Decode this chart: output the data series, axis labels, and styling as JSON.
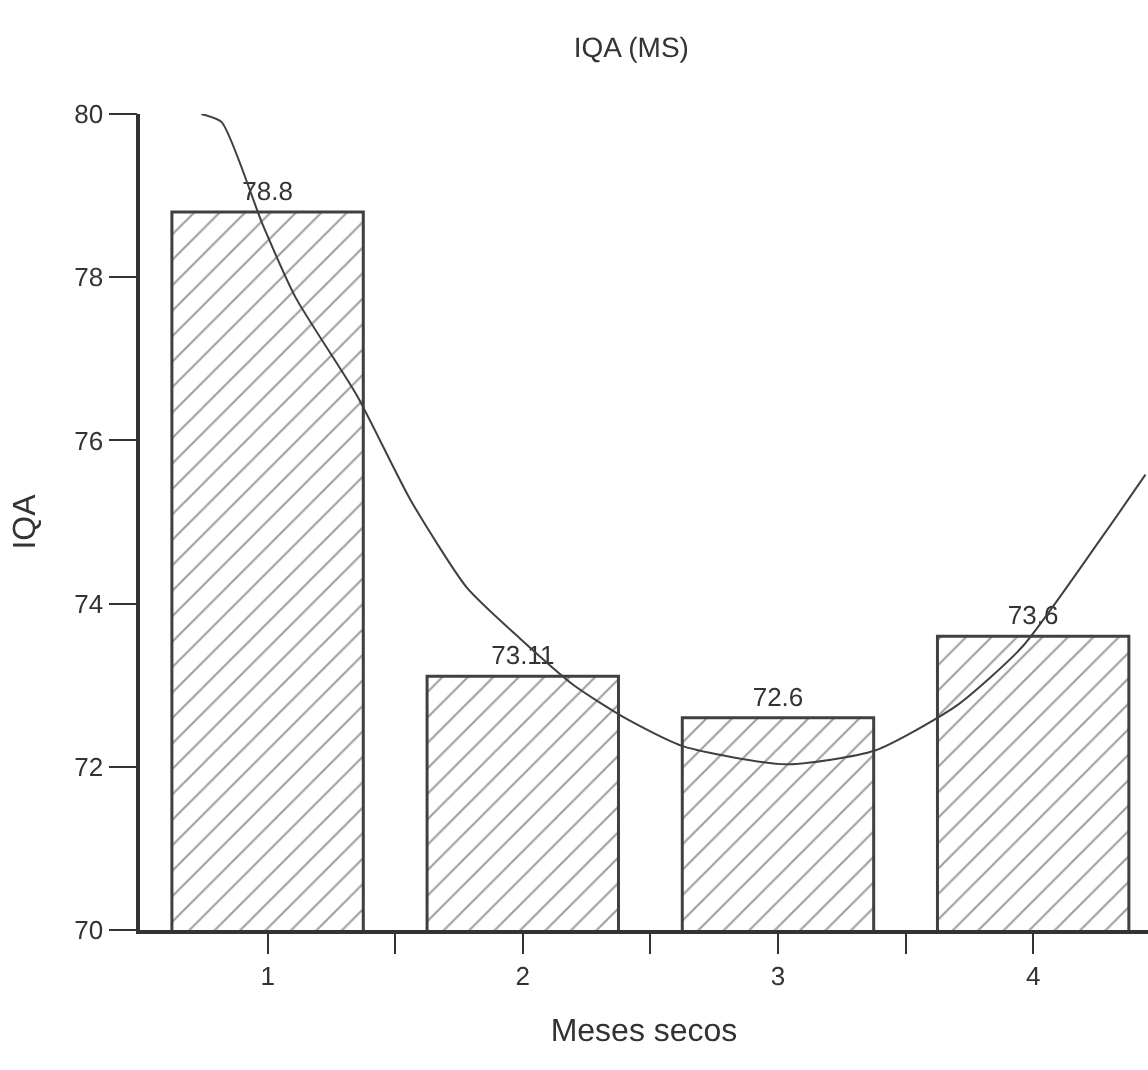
{
  "chart_data": {
    "type": "bar",
    "title": "IQA (MS)",
    "xlabel": "Meses secos",
    "ylabel": "IQA",
    "x": [
      1,
      2,
      3,
      4
    ],
    "series": [
      {
        "color": "#404040",
        "values": [
          78.8,
          73.11,
          72.6,
          73.6
        ],
        "value_labels": [
          "78.8",
          "73.11",
          "72.6",
          "73.6"
        ]
      },
      {
        "type": "line",
        "color": "#404040",
        "x": [
          0.74,
          0.82,
          0.98,
          1.11,
          1.35,
          1.56,
          1.78,
          1.99,
          2.2,
          2.4,
          2.63,
          3.03,
          3.38,
          3.7,
          3.96,
          4.28,
          4.44
        ],
        "values": [
          80,
          79.9,
          78.65,
          77.75,
          76.55,
          75.27,
          74.2,
          73.57,
          73.0,
          72.6,
          72.25,
          72.03,
          72.2,
          72.75,
          73.48,
          74.86,
          75.58
        ]
      }
    ],
    "xlim": [
      0.5,
      4.45
    ],
    "xticks": [
      {
        "value": 1,
        "label": "1"
      },
      {
        "value": 1.5,
        "label": null
      },
      {
        "value": 2,
        "label": "2"
      },
      {
        "value": 2.5,
        "label": null
      },
      {
        "value": 3,
        "label": "3"
      },
      {
        "value": 3.5,
        "label": null
      },
      {
        "value": 4,
        "label": "4"
      }
    ],
    "ylim": [
      70,
      80
    ],
    "yticks": [
      70,
      72,
      74,
      76,
      78,
      80
    ],
    "marker": "none",
    "line_style": "solid"
  }
}
